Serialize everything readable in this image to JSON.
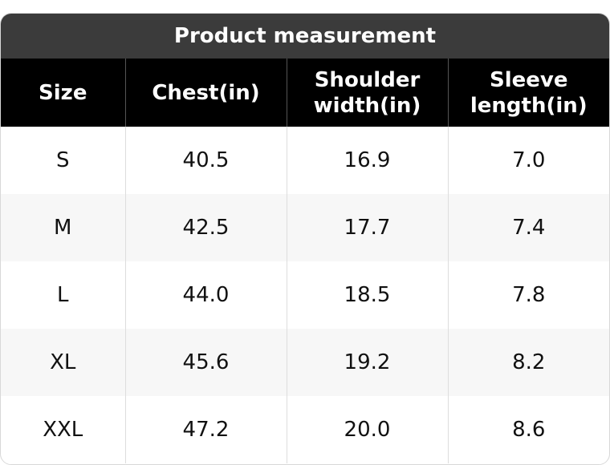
{
  "title": "Product measurement",
  "table": {
    "header": [
      "Size",
      "Chest(in)",
      "Shoulder width(in)",
      "Sleeve length(in)"
    ],
    "rows": [
      [
        "S",
        "40.5",
        "16.9",
        "7.0"
      ],
      [
        "M",
        "42.5",
        "17.7",
        "7.4"
      ],
      [
        "L",
        "44.0",
        "18.5",
        "7.8"
      ],
      [
        "XL",
        "45.6",
        "19.2",
        "8.2"
      ],
      [
        "XXL",
        "47.2",
        "20.0",
        "8.6"
      ]
    ]
  }
}
